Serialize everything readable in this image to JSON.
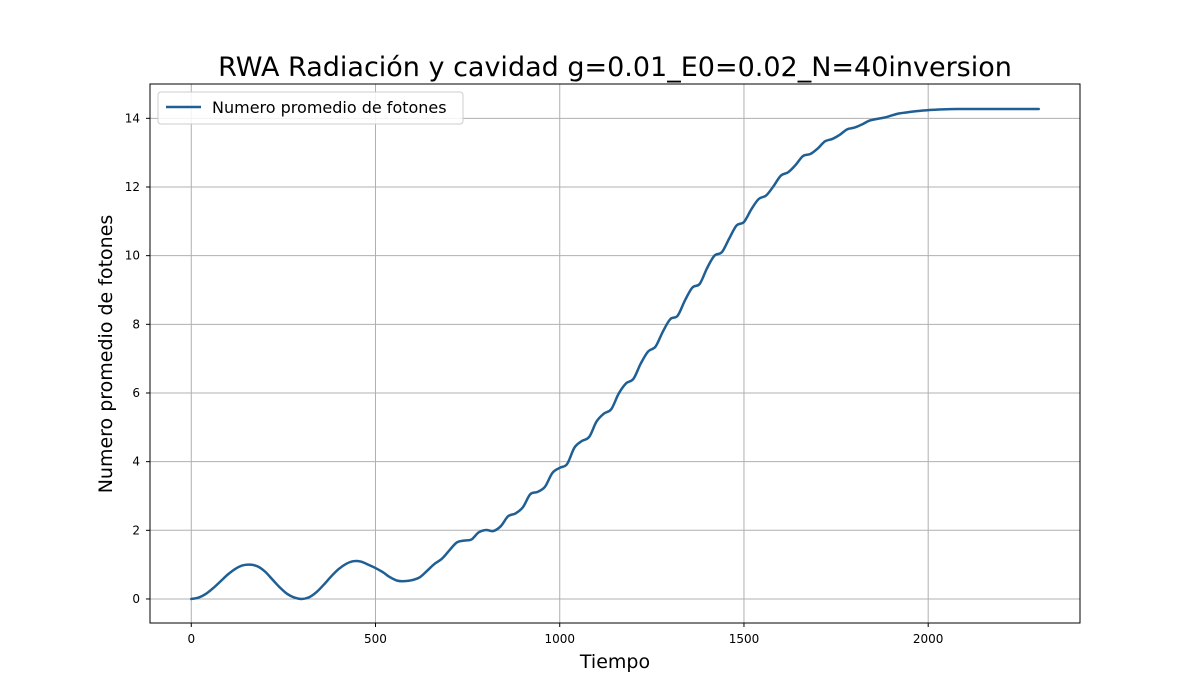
{
  "chart_data": {
    "type": "line",
    "title": "RWA Radiación y cavidad g=0.01_E0=0.02_N=40inversion",
    "xlabel": "Tiempo",
    "ylabel": "Numero promedio de fotones",
    "xlim": [
      -112,
      2412
    ],
    "ylim": [
      -0.7,
      15
    ],
    "xticks": [
      0,
      500,
      1000,
      1500,
      2000
    ],
    "yticks": [
      0,
      2,
      4,
      6,
      8,
      10,
      12,
      14
    ],
    "grid": true,
    "legend_position": "top-left",
    "series": [
      {
        "name": "Numero promedio de fotones",
        "color": "#1f5f94",
        "x": [
          0,
          20,
          40,
          60,
          80,
          100,
          120,
          140,
          160,
          180,
          200,
          220,
          240,
          260,
          280,
          300,
          320,
          340,
          360,
          380,
          400,
          420,
          440,
          460,
          480,
          500,
          520,
          540,
          560,
          580,
          600,
          620,
          640,
          660,
          680,
          700,
          720,
          740,
          760,
          780,
          800,
          820,
          840,
          860,
          880,
          900,
          920,
          940,
          960,
          980,
          1000,
          1020,
          1040,
          1060,
          1080,
          1100,
          1120,
          1140,
          1160,
          1180,
          1200,
          1220,
          1240,
          1260,
          1280,
          1300,
          1320,
          1340,
          1360,
          1380,
          1400,
          1420,
          1440,
          1460,
          1480,
          1500,
          1520,
          1540,
          1560,
          1580,
          1600,
          1620,
          1640,
          1660,
          1680,
          1700,
          1720,
          1740,
          1760,
          1780,
          1800,
          1820,
          1840,
          1860,
          1880,
          1900,
          1920,
          1940,
          1960,
          1980,
          2000,
          2040,
          2080,
          2120,
          2160,
          2200,
          2240,
          2300
        ],
        "y": [
          0.0,
          0.04,
          0.15,
          0.32,
          0.52,
          0.72,
          0.88,
          0.98,
          1.0,
          0.95,
          0.8,
          0.57,
          0.34,
          0.15,
          0.04,
          0.0,
          0.05,
          0.2,
          0.42,
          0.66,
          0.87,
          1.02,
          1.1,
          1.09,
          1.0,
          0.9,
          0.78,
          0.63,
          0.53,
          0.52,
          0.55,
          0.63,
          0.82,
          1.02,
          1.17,
          1.41,
          1.64,
          1.7,
          1.73,
          1.94,
          2.01,
          1.98,
          2.12,
          2.41,
          2.49,
          2.67,
          3.05,
          3.12,
          3.27,
          3.67,
          3.82,
          3.93,
          4.41,
          4.6,
          4.72,
          5.17,
          5.4,
          5.53,
          5.98,
          6.28,
          6.41,
          6.86,
          7.21,
          7.35,
          7.79,
          8.15,
          8.25,
          8.7,
          9.07,
          9.18,
          9.64,
          10.0,
          10.1,
          10.5,
          10.88,
          10.98,
          11.35,
          11.65,
          11.75,
          12.02,
          12.33,
          12.43,
          12.64,
          12.9,
          12.96,
          13.12,
          13.33,
          13.4,
          13.52,
          13.68,
          13.73,
          13.82,
          13.93,
          13.98,
          14.02,
          14.08,
          14.14,
          14.17,
          14.2,
          14.22,
          14.24,
          14.26,
          14.27,
          14.27,
          14.27,
          14.27,
          14.27,
          14.27
        ]
      }
    ]
  }
}
